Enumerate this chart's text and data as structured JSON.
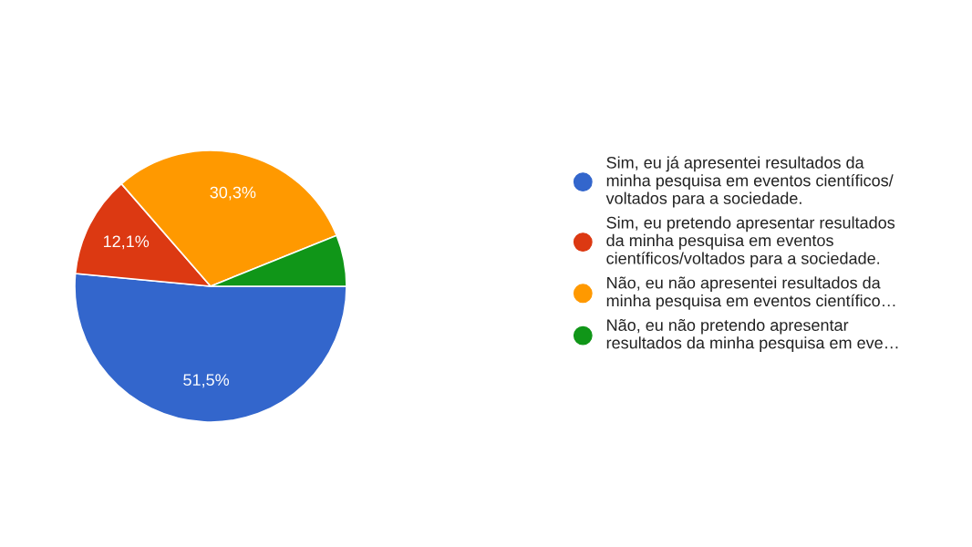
{
  "chart_data": {
    "type": "pie",
    "categories": [
      "Sim, eu já apresentei resultados da\nminha pesquisa em eventos científicos/\nvoltados para a sociedade.",
      "Sim, eu pretendo apresentar resultados\nda minha pesquisa em eventos\ncientíficos/voltados para a sociedade.",
      "Não, eu não apresentei resultados da\nminha pesquisa em eventos científico…",
      "Não, eu não pretendo apresentar\nresultados da minha pesquisa em eve…"
    ],
    "values": [
      51.5,
      12.1,
      30.3,
      6.1
    ],
    "colors": [
      "#3366cc",
      "#dc3912",
      "#ff9900",
      "#109618"
    ],
    "value_labels": [
      "51,5%",
      "12,1%",
      "30,3%",
      null
    ],
    "legend": "right"
  }
}
